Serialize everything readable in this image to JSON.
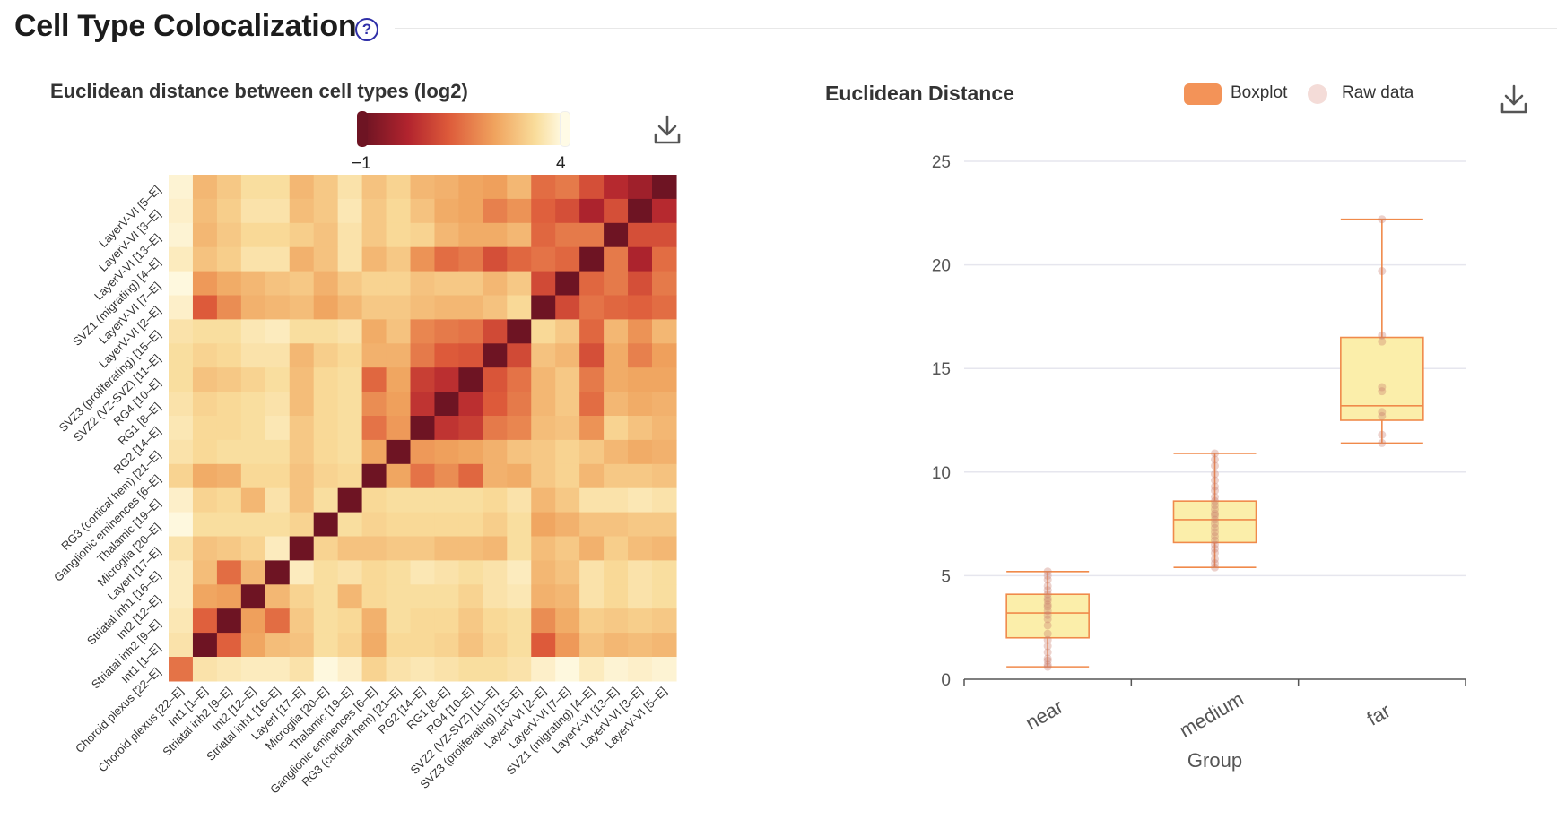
{
  "page": {
    "title": "Cell Type Colocalization",
    "help_icon": "question-circle-icon",
    "download_icon": "download-icon"
  },
  "colors": {
    "accent": "#2f2fa8",
    "box_fill": "#fbeeaa",
    "box_stroke": "#f08a4b",
    "raw_point": "#c97a6e",
    "heat_low": "#6e1423",
    "heat_high": "#fffce8"
  },
  "chart_data": [
    {
      "type": "heatmap",
      "title": "Euclidean distance between cell types (log2)",
      "colorscale": {
        "min_label": "−1",
        "max_label": "4",
        "min": -1,
        "max": 4
      },
      "rows": [
        "LayerV-VI [5–E]",
        "LayerV-VI [3–E]",
        "LayerV-VI [13–E]",
        "SVZ1 (migrating) [4–E]",
        "LayerV-VI [7–E]",
        "LayerV-VI [2–E]",
        "SVZ3 (proliferating) [15–E]",
        "SVZ2 (VZ-SVZ) [11–E]",
        "RG4 [10–E]",
        "RG1 [8–E]",
        "RG2 [14–E]",
        "RG3 (cortical hem) [21–E]",
        "Ganglionic eminences [6–E]",
        "Thalamic [19–E]",
        "Microglia [20–E]",
        "LayerI [17–E]",
        "Striatal inh1 [16–E]",
        "Int2 [12–E]",
        "Striatal inh2 [9–E]",
        "Int1 [1–E]",
        "Choroid plexus [22–E]"
      ],
      "columns": [
        "Choroid plexus [22–E]",
        "Int1 [1–E]",
        "Striatal inh2 [9–E]",
        "Int2 [12–E]",
        "Striatal inh1 [16–E]",
        "LayerI [17–E]",
        "Microglia [20–E]",
        "Thalamic [19–E]",
        "Ganglionic eminences [6–E]",
        "RG3 (cortical hem) [21–E]",
        "RG2 [14–E]",
        "RG1 [8–E]",
        "RG4 [10–E]",
        "SVZ2 (VZ-SVZ) [11–E]",
        "SVZ3 (proliferating) [15–E]",
        "LayerV-VI [2–E]",
        "LayerV-VI [7–E]",
        "SVZ1 (migrating) [4–E]",
        "LayerV-VI [13–E]",
        "LayerV-VI [3–E]",
        "LayerV-VI [5–E]"
      ],
      "values": [
        [
          3.8,
          2.6,
          2.9,
          3.3,
          3.3,
          2.6,
          2.9,
          3.4,
          2.8,
          3.1,
          2.6,
          2.5,
          2.3,
          2.2,
          2.6,
          1.4,
          1.6,
          0.9,
          0.2,
          -0.2,
          -1.0
        ],
        [
          3.7,
          2.7,
          3.0,
          3.4,
          3.4,
          2.7,
          2.9,
          3.5,
          2.9,
          3.2,
          2.8,
          2.4,
          2.3,
          1.7,
          2.0,
          1.2,
          0.9,
          0.0,
          0.9,
          -1.0,
          0.2
        ],
        [
          3.8,
          2.6,
          2.9,
          3.2,
          3.2,
          3.0,
          2.8,
          3.4,
          2.9,
          3.2,
          3.1,
          2.6,
          2.4,
          2.4,
          2.6,
          1.3,
          1.6,
          1.6,
          -1.0,
          0.9,
          0.9
        ],
        [
          3.6,
          2.8,
          3.0,
          3.4,
          3.4,
          2.5,
          2.8,
          3.4,
          2.6,
          2.9,
          2.0,
          1.4,
          1.6,
          0.9,
          1.3,
          1.5,
          1.3,
          -1.0,
          1.6,
          0.0,
          1.4
        ],
        [
          3.9,
          2.1,
          2.4,
          2.6,
          2.8,
          2.9,
          2.5,
          2.9,
          3.1,
          3.1,
          2.8,
          2.9,
          2.9,
          2.6,
          2.9,
          0.8,
          -1.0,
          1.3,
          1.6,
          0.9,
          1.6
        ],
        [
          3.7,
          1.1,
          1.9,
          2.5,
          2.6,
          2.7,
          2.3,
          2.6,
          2.9,
          2.9,
          2.7,
          2.6,
          2.6,
          2.8,
          3.2,
          -1.0,
          0.8,
          1.5,
          1.3,
          1.2,
          1.4
        ],
        [
          3.4,
          3.3,
          3.3,
          3.5,
          3.6,
          3.3,
          3.3,
          3.4,
          2.4,
          2.8,
          1.8,
          1.6,
          1.5,
          0.8,
          -1.0,
          3.2,
          2.9,
          1.3,
          2.6,
          2.0,
          2.6
        ],
        [
          3.3,
          3.1,
          3.2,
          3.4,
          3.4,
          2.6,
          3.0,
          3.2,
          2.5,
          2.5,
          1.6,
          1.1,
          1.0,
          -1.0,
          0.8,
          2.8,
          2.6,
          0.9,
          2.4,
          1.7,
          2.2
        ],
        [
          3.3,
          2.8,
          2.9,
          3.1,
          3.3,
          2.7,
          3.2,
          3.3,
          1.3,
          2.3,
          0.6,
          0.3,
          -1.0,
          1.0,
          1.5,
          2.6,
          2.9,
          1.6,
          2.4,
          2.3,
          2.3
        ],
        [
          3.4,
          3.1,
          3.2,
          3.3,
          3.4,
          2.7,
          3.2,
          3.3,
          1.9,
          2.2,
          0.4,
          -1.0,
          0.3,
          1.1,
          1.6,
          2.6,
          2.9,
          1.4,
          2.6,
          2.4,
          2.5
        ],
        [
          3.5,
          3.2,
          3.2,
          3.3,
          3.5,
          2.9,
          3.2,
          3.3,
          1.5,
          2.1,
          -1.0,
          0.4,
          0.6,
          1.6,
          1.8,
          2.7,
          2.8,
          2.0,
          3.1,
          2.8,
          2.6
        ],
        [
          3.4,
          3.2,
          3.3,
          3.3,
          3.3,
          2.9,
          3.2,
          3.3,
          2.3,
          -1.0,
          2.1,
          2.2,
          2.3,
          2.5,
          2.8,
          2.9,
          3.1,
          2.9,
          2.6,
          2.4,
          2.5
        ],
        [
          3.1,
          2.4,
          2.5,
          3.2,
          3.2,
          2.8,
          3.1,
          3.2,
          -1.0,
          2.3,
          1.5,
          1.9,
          1.3,
          2.5,
          2.4,
          2.9,
          3.1,
          2.6,
          2.9,
          2.9,
          2.8
        ],
        [
          3.7,
          3.1,
          3.2,
          2.6,
          3.4,
          2.8,
          3.3,
          -1.0,
          3.2,
          3.3,
          3.3,
          3.3,
          3.3,
          3.2,
          3.4,
          2.6,
          2.9,
          3.4,
          3.4,
          3.5,
          3.4
        ],
        [
          3.9,
          3.3,
          3.3,
          3.3,
          3.3,
          3.1,
          -1.0,
          3.3,
          3.1,
          3.2,
          3.2,
          3.2,
          3.2,
          3.0,
          3.3,
          2.3,
          2.5,
          2.8,
          2.8,
          2.9,
          2.9
        ],
        [
          3.4,
          2.8,
          2.9,
          3.1,
          3.6,
          -1.0,
          3.1,
          2.8,
          2.8,
          2.9,
          2.9,
          2.7,
          2.7,
          2.6,
          3.3,
          2.7,
          2.9,
          2.5,
          3.0,
          2.7,
          2.6
        ],
        [
          3.6,
          2.7,
          1.4,
          2.6,
          -1.0,
          3.6,
          3.3,
          3.4,
          3.2,
          3.3,
          3.5,
          3.4,
          3.3,
          3.4,
          3.6,
          2.6,
          2.8,
          3.4,
          3.2,
          3.4,
          3.3
        ],
        [
          3.6,
          2.3,
          2.2,
          -1.0,
          2.6,
          3.1,
          3.3,
          2.6,
          3.2,
          3.3,
          3.3,
          3.3,
          3.1,
          3.4,
          3.5,
          2.5,
          2.6,
          3.4,
          3.2,
          3.4,
          3.3
        ],
        [
          3.5,
          1.2,
          -1.0,
          2.2,
          1.4,
          2.9,
          3.3,
          3.2,
          2.5,
          3.3,
          3.2,
          3.2,
          2.9,
          3.2,
          3.3,
          1.9,
          2.4,
          3.0,
          2.9,
          3.0,
          2.9
        ],
        [
          3.4,
          -1.0,
          1.2,
          2.3,
          2.7,
          2.8,
          3.3,
          3.1,
          2.4,
          3.2,
          3.2,
          3.1,
          2.8,
          3.1,
          3.3,
          1.1,
          2.1,
          2.8,
          2.6,
          2.7,
          2.6
        ],
        [
          1.5,
          3.4,
          3.5,
          3.6,
          3.6,
          3.4,
          3.9,
          3.7,
          3.1,
          3.4,
          3.5,
          3.4,
          3.3,
          3.3,
          3.4,
          3.7,
          3.9,
          3.6,
          3.8,
          3.7,
          3.8
        ]
      ]
    },
    {
      "type": "box",
      "title": "Euclidean Distance",
      "xlabel": "Group",
      "ylabel": "",
      "ylim": [
        0,
        25
      ],
      "yticks": [
        0,
        5,
        10,
        15,
        20,
        25
      ],
      "legend": {
        "position": "top-right",
        "items": [
          "Boxplot",
          "Raw data"
        ]
      },
      "categories": [
        "near",
        "medium",
        "far"
      ],
      "boxes": [
        {
          "name": "near",
          "min": 0.6,
          "q1": 2.0,
          "median": 3.2,
          "q3": 4.1,
          "max": 5.2
        },
        {
          "name": "medium",
          "min": 5.4,
          "q1": 6.6,
          "median": 7.7,
          "q3": 8.6,
          "max": 10.9
        },
        {
          "name": "far",
          "min": 11.4,
          "q1": 12.5,
          "median": 13.2,
          "q3": 16.5,
          "max": 22.2
        }
      ],
      "raw": [
        [
          0.6,
          0.7,
          0.9,
          1.0,
          1.3,
          1.6,
          1.9,
          2.2,
          2.6,
          2.9,
          3.1,
          3.3,
          3.5,
          3.6,
          3.8,
          3.9,
          4.1,
          4.3,
          4.5,
          4.8,
          5.0,
          5.2
        ],
        [
          5.4,
          5.6,
          5.8,
          6.1,
          6.3,
          6.5,
          6.7,
          6.9,
          7.1,
          7.3,
          7.5,
          7.7,
          7.9,
          8.0,
          8.2,
          8.4,
          8.6,
          8.8,
          9.1,
          9.3,
          9.6,
          9.9,
          10.3,
          10.6,
          10.9
        ],
        [
          11.4,
          11.8,
          12.7,
          12.9,
          13.9,
          14.1,
          16.3,
          16.6,
          19.7,
          22.2
        ]
      ]
    }
  ]
}
